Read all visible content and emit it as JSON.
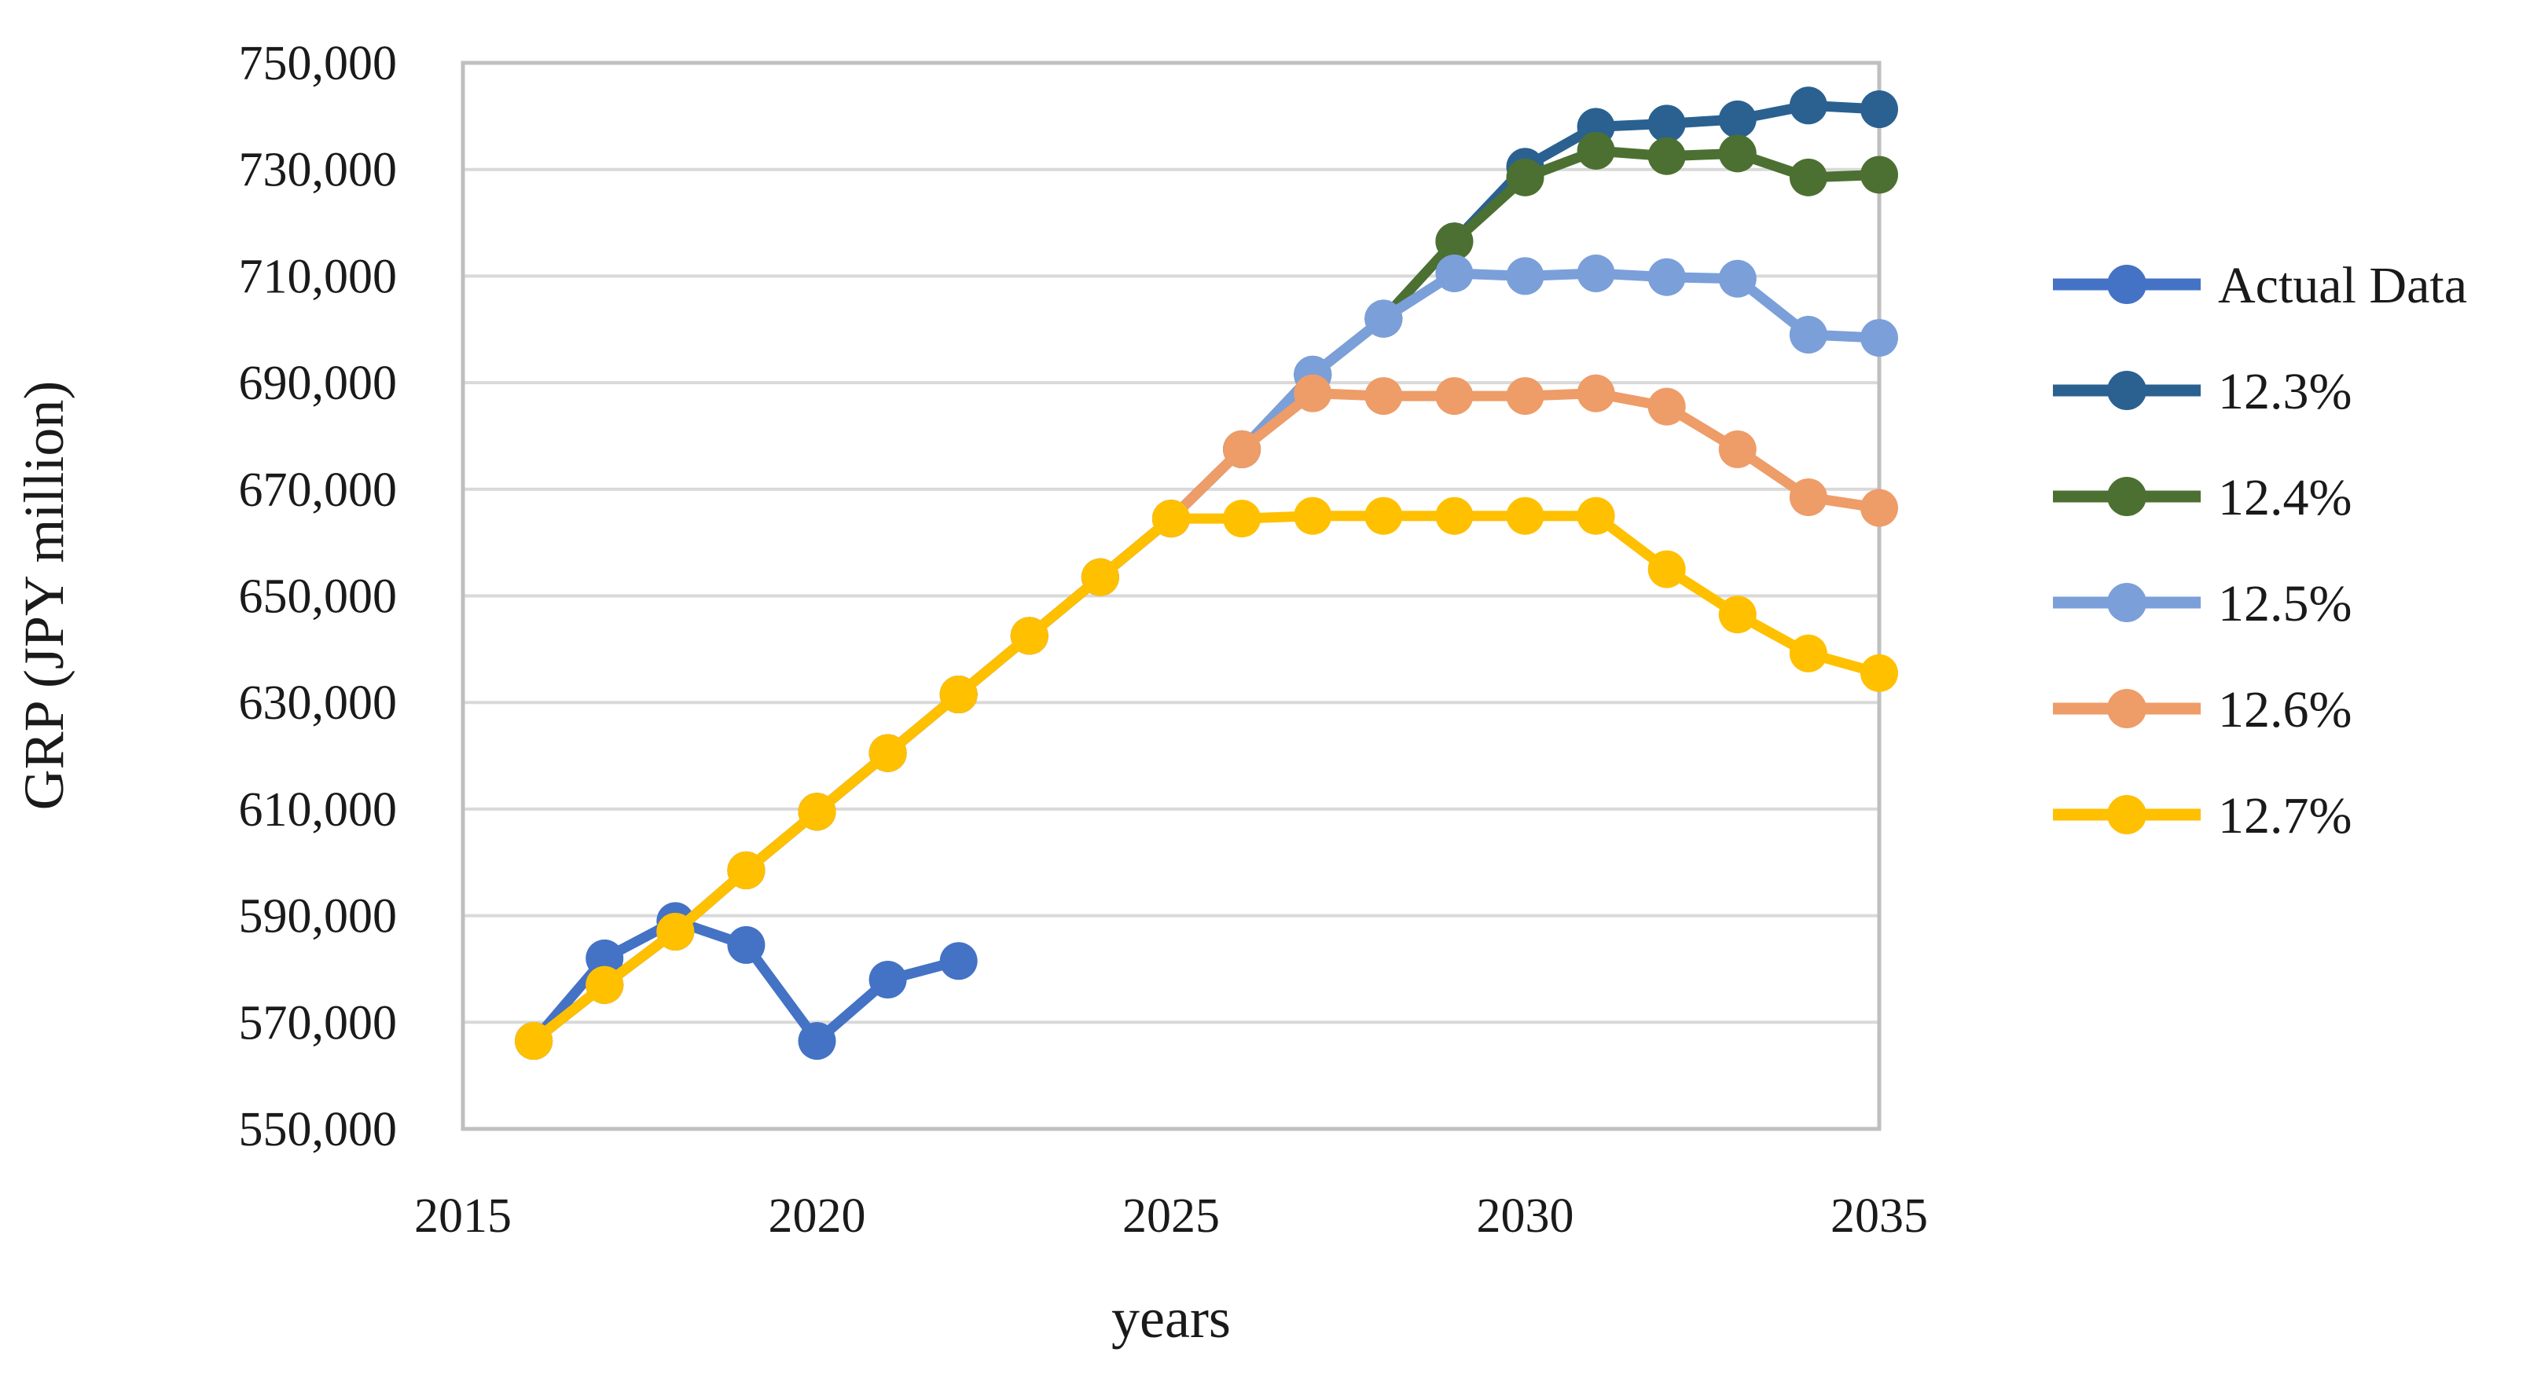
{
  "chart_data": {
    "type": "line",
    "title": "",
    "xlabel": "years",
    "ylabel": "GRP (JPY million)",
    "xlim": [
      2015,
      2035
    ],
    "ylim": [
      550000,
      750000
    ],
    "grid": "horizontal",
    "legend_position": "right",
    "x_tick_labels": [
      "2015",
      "2020",
      "2025",
      "2030",
      "2035"
    ],
    "x_tick_values": [
      2015,
      2020,
      2025,
      2030,
      2035
    ],
    "y_tick_labels": [
      "750,000",
      "730,000",
      "710,000",
      "690,000",
      "670,000",
      "650,000",
      "630,000",
      "610,000",
      "590,000",
      "570,000",
      "550,000"
    ],
    "y_tick_values": [
      750000,
      730000,
      710000,
      690000,
      670000,
      650000,
      630000,
      610000,
      590000,
      570000,
      550000
    ],
    "x": [
      2016,
      2017,
      2018,
      2019,
      2020,
      2021,
      2022,
      2023,
      2024,
      2025,
      2026,
      2027,
      2028,
      2029,
      2030,
      2031,
      2032,
      2033,
      2034,
      2035
    ],
    "series": [
      {
        "name": "Actual Data",
        "color": "#4472C4",
        "values": [
          566500,
          582000,
          589000,
          584500,
          566500,
          578000,
          581500,
          null,
          null,
          null,
          null,
          null,
          null,
          null,
          null,
          null,
          null,
          null,
          null,
          null
        ]
      },
      {
        "name": "12.3%",
        "color": "#2A6190",
        "values": [
          566500,
          577000,
          587000,
          598500,
          609500,
          620500,
          631500,
          642500,
          653500,
          664500,
          677500,
          691500,
          702000,
          716500,
          730500,
          738000,
          738600,
          739400,
          742000,
          741300
        ]
      },
      {
        "name": "12.4%",
        "color": "#4C7031",
        "values": [
          566500,
          577000,
          587000,
          598500,
          609500,
          620500,
          631500,
          642500,
          653500,
          664500,
          677500,
          691500,
          702000,
          716500,
          728500,
          733500,
          732500,
          733000,
          728500,
          729000
        ]
      },
      {
        "name": "12.5%",
        "color": "#7B9FD9",
        "values": [
          566500,
          577000,
          587000,
          598500,
          609500,
          620500,
          631500,
          642500,
          653500,
          664500,
          677500,
          691500,
          702000,
          710500,
          710000,
          710500,
          709800,
          709500,
          699000,
          698400
        ]
      },
      {
        "name": "12.6%",
        "color": "#EE9C68",
        "values": [
          566500,
          577000,
          587000,
          598500,
          609500,
          620500,
          631500,
          642500,
          653500,
          664500,
          677500,
          688000,
          687500,
          687500,
          687500,
          688000,
          685500,
          677500,
          668500,
          666500
        ]
      },
      {
        "name": "12.7%",
        "color": "#FFC000",
        "values": [
          566500,
          577000,
          587000,
          598500,
          609500,
          620500,
          631500,
          642500,
          653500,
          664500,
          664500,
          665000,
          665000,
          665000,
          665000,
          665000,
          655000,
          646500,
          639200,
          635500
        ]
      }
    ],
    "colors": {
      "gridline": "#D9D9D9",
      "plot_border": "#BFBFBF",
      "text": "#1a1a1a",
      "background": "#FFFFFF"
    }
  }
}
